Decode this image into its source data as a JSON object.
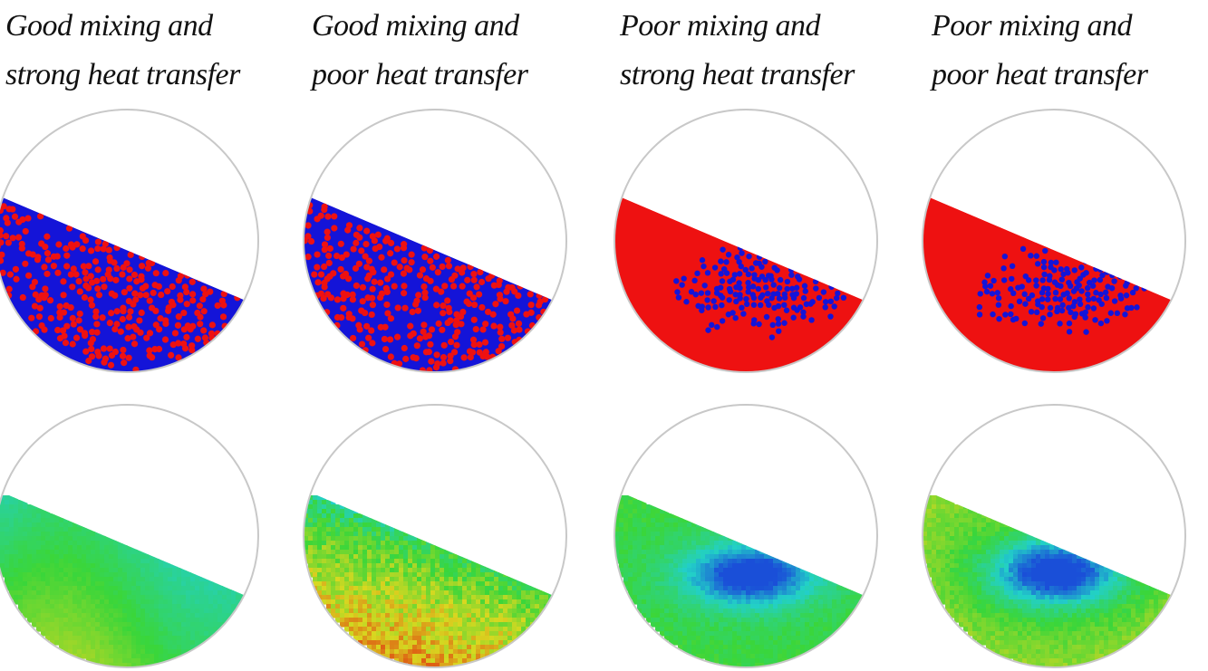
{
  "columns": [
    {
      "title_line1": "Good mixing and",
      "title_line2": "strong heat transfer",
      "mixing": "well-mixed",
      "temperature": "smooth"
    },
    {
      "title_line1": "Good mixing and",
      "title_line2": "poor heat transfer",
      "mixing": "well-mixed",
      "temperature": "noisy-hot-bottom"
    },
    {
      "title_line1": "Poor mixing and",
      "title_line2": "strong heat transfer",
      "mixing": "segregated-core",
      "temperature": "cold-core"
    },
    {
      "title_line1": "Poor mixing and",
      "title_line2": "poor heat transfer",
      "mixing": "segregated-core",
      "temperature": "cold-core-warm-rim"
    }
  ],
  "colors": {
    "particle_red": "#ee1111",
    "particle_blue": "#1414d8",
    "drum_outline": "#c8c8c8",
    "temp_cold": "#1a4fd8",
    "temp_cool": "#22d0c8",
    "temp_mid": "#3ad63a",
    "temp_warm": "#d8d820",
    "temp_hot": "#e04010"
  }
}
